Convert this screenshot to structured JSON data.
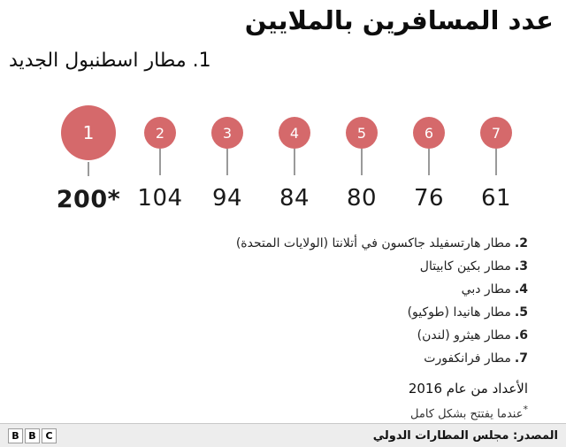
{
  "header": {
    "title": "عدد المسافرين بالملايين",
    "subtitle": "1. مطار اسطنبول الجديد"
  },
  "chart_data": {
    "type": "bar",
    "title": "عدد المسافرين بالملايين",
    "categories": [
      "1",
      "2",
      "3",
      "4",
      "5",
      "6",
      "7"
    ],
    "values": [
      200,
      104,
      94,
      84,
      80,
      76,
      61
    ],
    "value_labels": [
      "200*",
      "104",
      "94",
      "84",
      "80",
      "76",
      "61"
    ],
    "highlight_index": 0,
    "circle_color": "#d5696b",
    "legend_position": "below-right"
  },
  "legend": {
    "items": [
      {
        "num": "2.",
        "name": "مطار هارتسفيلد جاكسون في أتلانتا (الولايات المتحدة)"
      },
      {
        "num": "3.",
        "name": "مطار بكين كابيتال"
      },
      {
        "num": "4.",
        "name": "مطار دبي"
      },
      {
        "num": "5.",
        "name": "مطار هانيدا (طوكيو)"
      },
      {
        "num": "6.",
        "name": "مطار هيثرو (لندن)"
      },
      {
        "num": "7.",
        "name": "مطار فرانكفورت"
      }
    ]
  },
  "footnotes": {
    "year_note": "الأعداد من عام 2016",
    "marker": "*",
    "full_open_note": "عندما يفتتح بشكل كامل"
  },
  "footer": {
    "logo": [
      "B",
      "B",
      "C"
    ],
    "source": "المصدر: مجلس المطارات الدولي"
  }
}
